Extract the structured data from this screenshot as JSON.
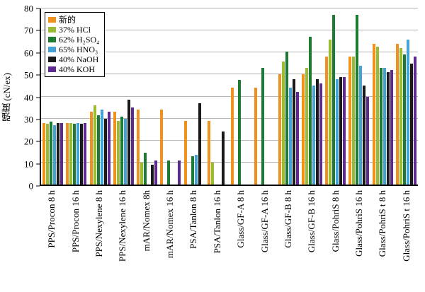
{
  "figure": {
    "background": "#ffffff",
    "gridline_color": "#b5b5b5",
    "axis_color": "#000000"
  },
  "chart_data": {
    "type": "bar",
    "title": "",
    "xlabel": "",
    "ylabel": "强度 (cN/ex)",
    "ylim": [
      0,
      80
    ],
    "ytick_step": 10,
    "y_ticks": [
      0,
      10,
      20,
      30,
      40,
      50,
      60,
      70,
      80
    ],
    "grid": true,
    "legend_position": "top-left",
    "categories": [
      "PPS/Procon 8 h",
      "PPS/Procon 16 h",
      "PPS/Nexylene 8 h",
      "PPS/Nexylene 16 h",
      "mAR/Nomex 8h",
      "mAR/Nomex 16 h",
      "PSA/Tanlon 8 h",
      "PSA/Tanlon 16 h",
      "Glass/GF-A 8 h",
      "Glass/GF-A 16 h",
      "Glass/GF-B 8 h",
      "Glass/GF-B 16 h",
      "Glass/PohriS 8 h",
      "Glass/PohriS 16 h",
      "Glass/PohriS t 8 h",
      "Glass/PohriS t 16 h"
    ],
    "series": [
      {
        "name": "新的",
        "color": "#f0911e",
        "values": [
          28,
          28,
          33,
          33,
          34,
          34,
          29,
          29,
          44,
          44,
          50,
          50,
          58,
          58,
          64,
          64
        ]
      },
      {
        "name": "37% HCl",
        "color": "#9abc32",
        "values": [
          27.5,
          28,
          36,
          29,
          10,
          0,
          0,
          10,
          0,
          0,
          56,
          53,
          66,
          58,
          62.5,
          62
        ]
      },
      {
        "name": "62% H₂SO₄",
        "color": "#1e7b34",
        "values": [
          28.5,
          27.5,
          31.5,
          31,
          14.5,
          11,
          13,
          0,
          47.5,
          53,
          60.5,
          67,
          77,
          77,
          53,
          59
        ]
      },
      {
        "name": "65% HNO₃",
        "color": "#44a2d4",
        "values": [
          27,
          28,
          34,
          30,
          0,
          0,
          13.5,
          0,
          0,
          0,
          44,
          45,
          48,
          54,
          53,
          66
        ]
      },
      {
        "name": "40% NaOH",
        "color": "#1a1a1a",
        "values": [
          28,
          27.5,
          30,
          38.5,
          9,
          0,
          37,
          24,
          0,
          0,
          48,
          48,
          49,
          45,
          51,
          55
        ]
      },
      {
        "name": "40% KOH",
        "color": "#5f2a90",
        "values": [
          28,
          28,
          33,
          35,
          11,
          11,
          0,
          0,
          0,
          0,
          42,
          46,
          49,
          40,
          52,
          58
        ]
      }
    ]
  }
}
